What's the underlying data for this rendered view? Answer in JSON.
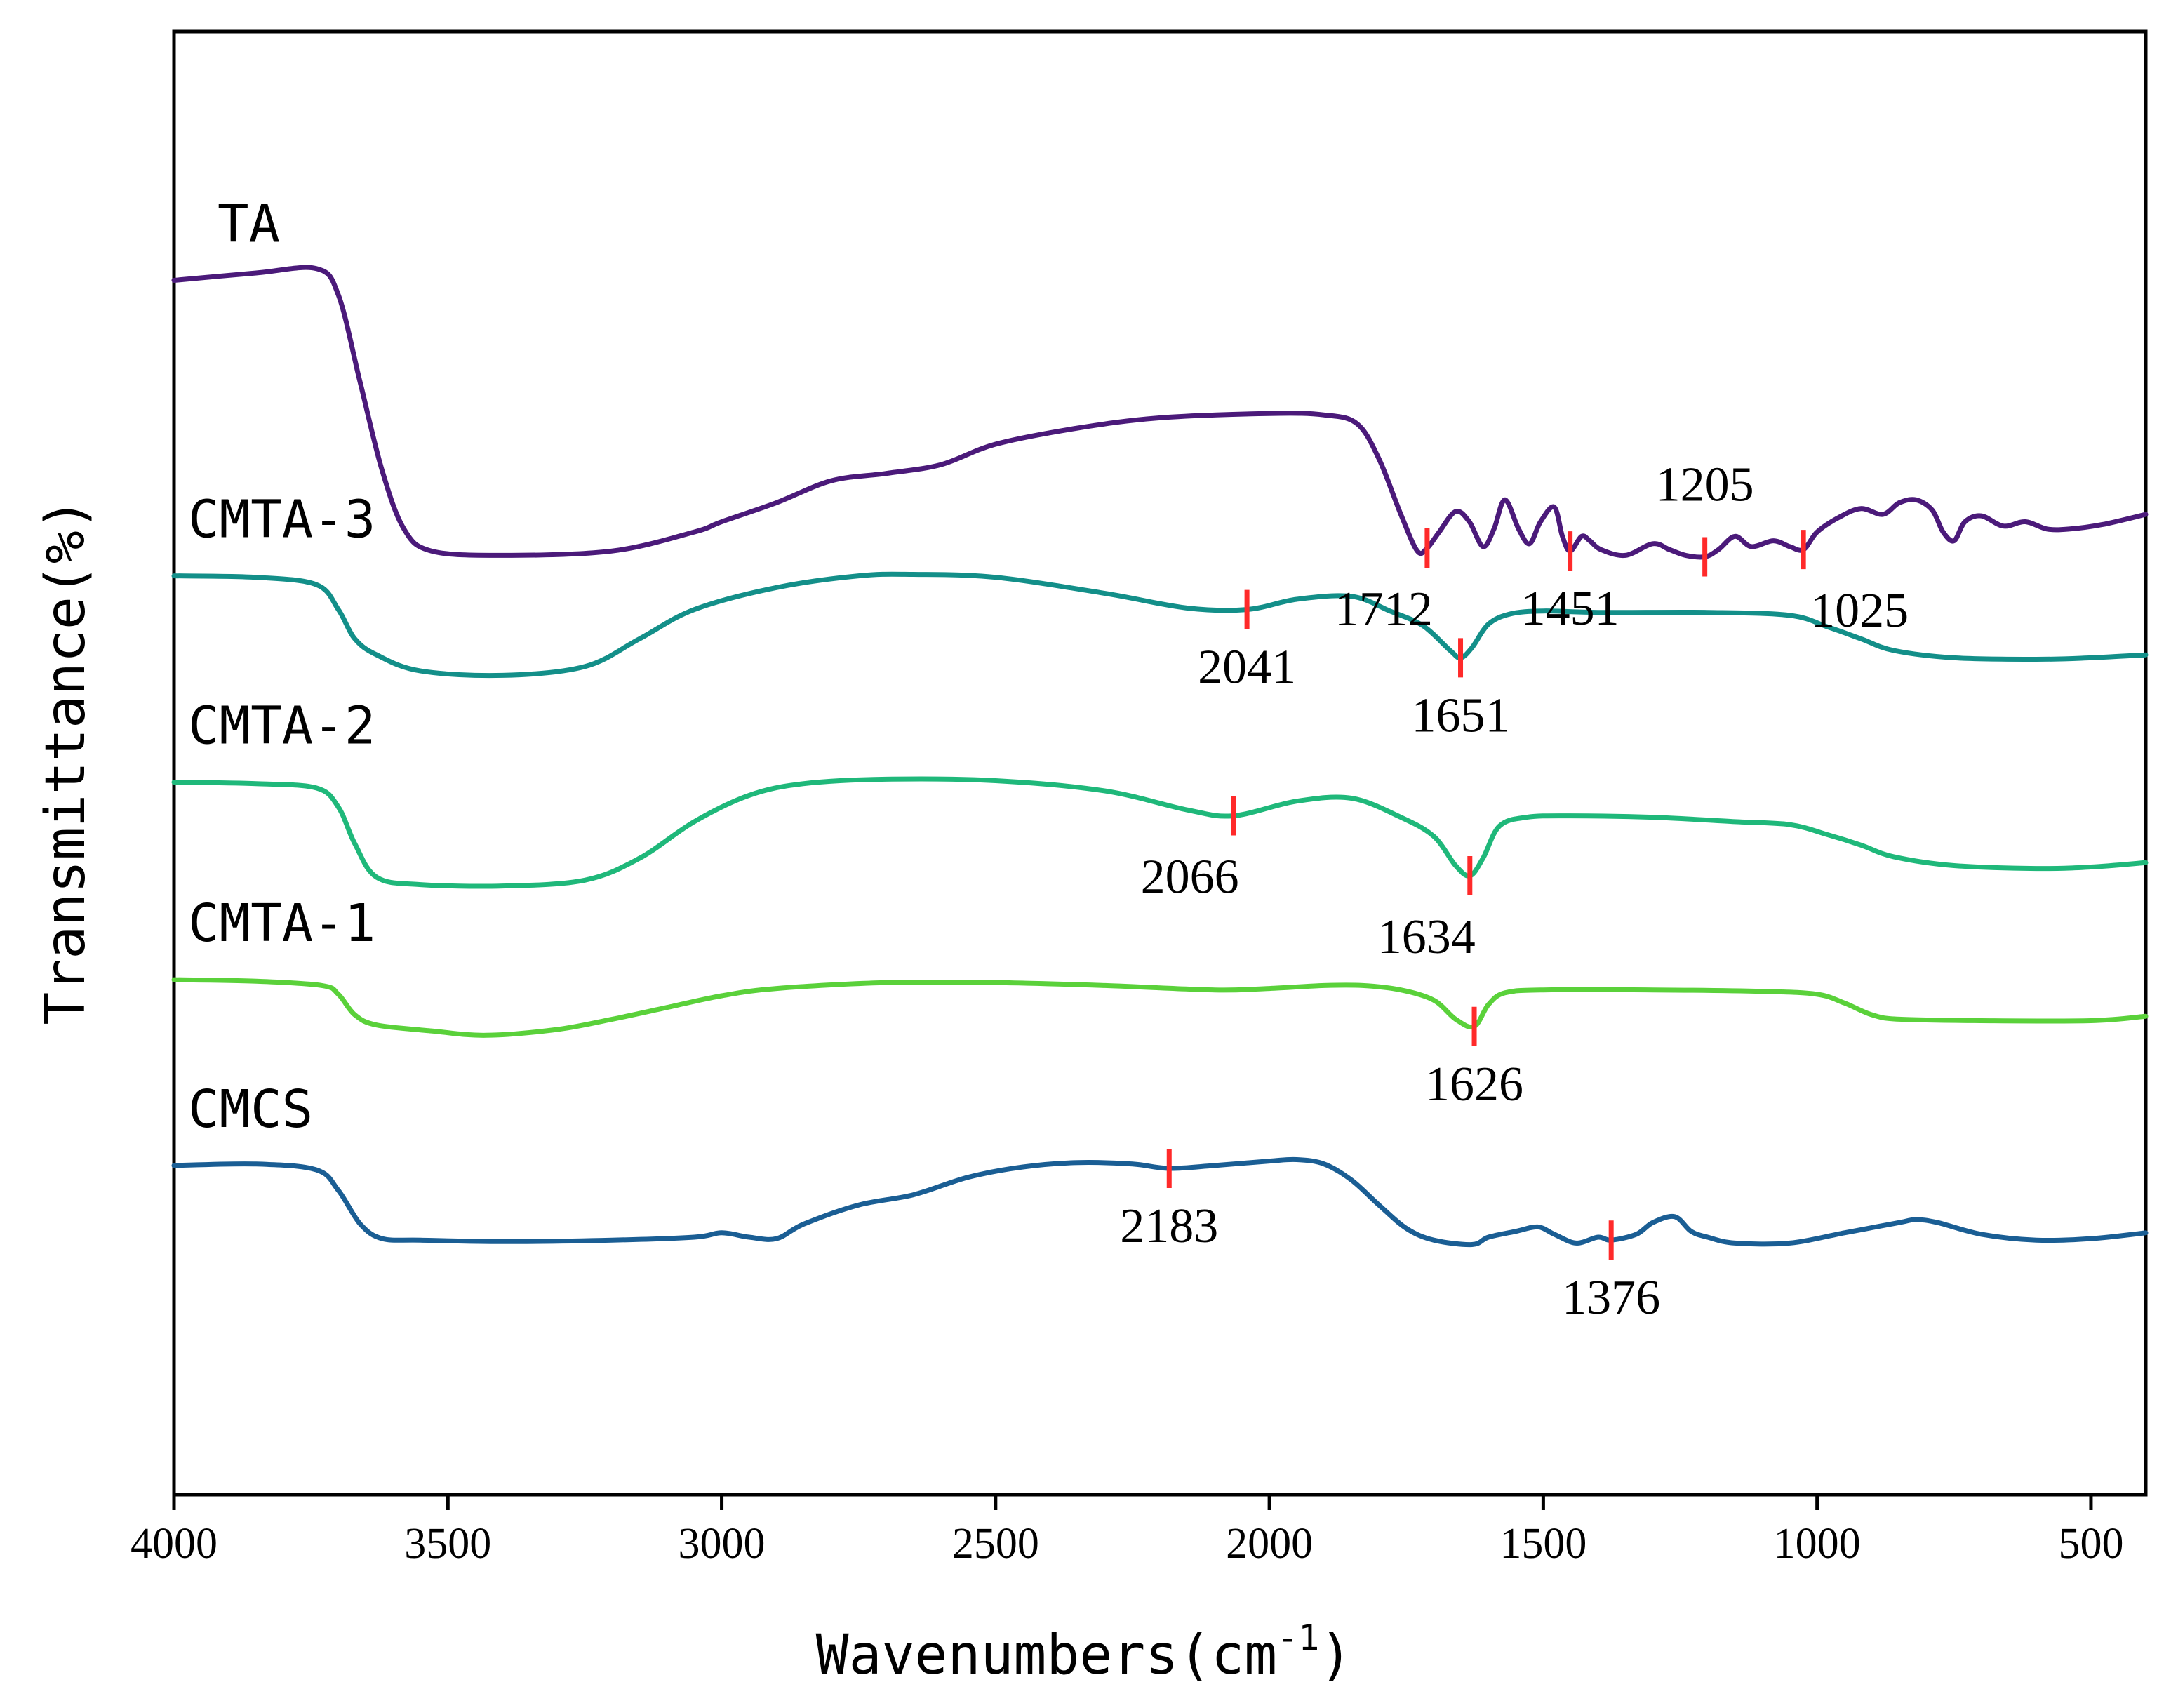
{
  "chart_data": {
    "type": "line",
    "title": "",
    "xlabel": "Wavenumbers(cm",
    "xlabel_sup": "-1",
    "xlabel_close": ")",
    "ylabel": "Transmittance(%)",
    "xlim": [
      4000,
      400
    ],
    "x_ticks": [
      "4000",
      "3500",
      "3000",
      "2500",
      "2000",
      "1500",
      "1000",
      "500"
    ],
    "x_tick_values": [
      4000,
      3500,
      3000,
      2500,
      2000,
      1500,
      1000,
      500
    ],
    "grid": false,
    "y_units": "relative transmittance (curves vertically offset, arbitrary units)",
    "ylim": [
      0,
      100
    ],
    "marker_color": "#ff2a2a",
    "series": [
      {
        "name": "TA",
        "color": "#4b1a7a",
        "points": [
          [
            4000,
            83
          ],
          [
            3850,
            83.5
          ],
          [
            3740,
            83.8
          ],
          [
            3700,
            82
          ],
          [
            3660,
            76
          ],
          [
            3620,
            70
          ],
          [
            3580,
            66
          ],
          [
            3530,
            64.5
          ],
          [
            3400,
            64.2
          ],
          [
            3200,
            64.5
          ],
          [
            3050,
            65.8
          ],
          [
            3000,
            66.5
          ],
          [
            2900,
            67.8
          ],
          [
            2800,
            69.3
          ],
          [
            2700,
            69.8
          ],
          [
            2600,
            70.4
          ],
          [
            2500,
            71.8
          ],
          [
            2350,
            72.9
          ],
          [
            2200,
            73.6
          ],
          [
            2000,
            73.9
          ],
          [
            1900,
            73.8
          ],
          [
            1840,
            73.2
          ],
          [
            1800,
            70.8
          ],
          [
            1760,
            67
          ],
          [
            1730,
            64.5
          ],
          [
            1712,
            64.7
          ],
          [
            1690,
            65.8
          ],
          [
            1660,
            67.2
          ],
          [
            1635,
            66.5
          ],
          [
            1610,
            64.8
          ],
          [
            1590,
            66
          ],
          [
            1570,
            68
          ],
          [
            1545,
            66
          ],
          [
            1525,
            65
          ],
          [
            1505,
            66.5
          ],
          [
            1480,
            67.5
          ],
          [
            1465,
            65.5
          ],
          [
            1451,
            64.5
          ],
          [
            1430,
            65.5
          ],
          [
            1415,
            65.2
          ],
          [
            1395,
            64.6
          ],
          [
            1350,
            64.2
          ],
          [
            1300,
            65
          ],
          [
            1270,
            64.6
          ],
          [
            1240,
            64.2
          ],
          [
            1205,
            64.1
          ],
          [
            1180,
            64.6
          ],
          [
            1150,
            65.5
          ],
          [
            1120,
            64.8
          ],
          [
            1080,
            65.2
          ],
          [
            1050,
            64.8
          ],
          [
            1025,
            64.6
          ],
          [
            1000,
            65.8
          ],
          [
            960,
            66.8
          ],
          [
            920,
            67.4
          ],
          [
            880,
            67
          ],
          [
            850,
            67.8
          ],
          [
            820,
            68
          ],
          [
            790,
            67.3
          ],
          [
            770,
            65.8
          ],
          [
            750,
            65.2
          ],
          [
            730,
            66.5
          ],
          [
            700,
            66.9
          ],
          [
            660,
            66.2
          ],
          [
            620,
            66.5
          ],
          [
            580,
            66
          ],
          [
            540,
            66
          ],
          [
            480,
            66.3
          ],
          [
            400,
            67
          ]
        ]
      },
      {
        "name": "CMTA-3",
        "color": "#138f89",
        "points": [
          [
            4000,
            62.8
          ],
          [
            3850,
            62.7
          ],
          [
            3740,
            62.2
          ],
          [
            3700,
            60.5
          ],
          [
            3670,
            58.5
          ],
          [
            3630,
            57.4
          ],
          [
            3550,
            56.3
          ],
          [
            3400,
            56.0
          ],
          [
            3250,
            56.6
          ],
          [
            3150,
            58.5
          ],
          [
            3050,
            60.5
          ],
          [
            2900,
            62
          ],
          [
            2750,
            62.8
          ],
          [
            2650,
            62.9
          ],
          [
            2500,
            62.7
          ],
          [
            2300,
            61.6
          ],
          [
            2150,
            60.6
          ],
          [
            2041,
            60.5
          ],
          [
            1950,
            61.2
          ],
          [
            1850,
            61.4
          ],
          [
            1780,
            60.4
          ],
          [
            1720,
            59.4
          ],
          [
            1670,
            57.7
          ],
          [
            1651,
            57.2
          ],
          [
            1630,
            57.9
          ],
          [
            1600,
            59.5
          ],
          [
            1560,
            60.2
          ],
          [
            1500,
            60.4
          ],
          [
            1400,
            60.3
          ],
          [
            1200,
            60.3
          ],
          [
            1050,
            60.1
          ],
          [
            980,
            59.3
          ],
          [
            920,
            58.5
          ],
          [
            860,
            57.7
          ],
          [
            750,
            57.2
          ],
          [
            600,
            57.1
          ],
          [
            500,
            57.2
          ],
          [
            400,
            57.4
          ]
        ]
      },
      {
        "name": "CMTA-2",
        "color": "#1fb87a",
        "points": [
          [
            4000,
            48.7
          ],
          [
            3850,
            48.6
          ],
          [
            3740,
            48.3
          ],
          [
            3700,
            47
          ],
          [
            3670,
            44.5
          ],
          [
            3630,
            42.2
          ],
          [
            3550,
            41.7
          ],
          [
            3400,
            41.6
          ],
          [
            3250,
            42
          ],
          [
            3150,
            43.5
          ],
          [
            3050,
            46
          ],
          [
            2950,
            47.8
          ],
          [
            2850,
            48.6
          ],
          [
            2700,
            48.9
          ],
          [
            2500,
            48.8
          ],
          [
            2300,
            48.1
          ],
          [
            2150,
            46.8
          ],
          [
            2066,
            46.4
          ],
          [
            1950,
            47.4
          ],
          [
            1850,
            47.6
          ],
          [
            1760,
            46.3
          ],
          [
            1700,
            45
          ],
          [
            1660,
            43
          ],
          [
            1634,
            42.3
          ],
          [
            1610,
            43.5
          ],
          [
            1580,
            45.7
          ],
          [
            1530,
            46.3
          ],
          [
            1450,
            46.4
          ],
          [
            1300,
            46.3
          ],
          [
            1150,
            46.0
          ],
          [
            1050,
            45.8
          ],
          [
            980,
            45.1
          ],
          [
            920,
            44.4
          ],
          [
            860,
            43.6
          ],
          [
            750,
            43.0
          ],
          [
            600,
            42.8
          ],
          [
            500,
            42.9
          ],
          [
            400,
            43.2
          ]
        ]
      },
      {
        "name": "CMTA-1",
        "color": "#5ad13a",
        "points": [
          [
            4000,
            35.2
          ],
          [
            3850,
            35.1
          ],
          [
            3730,
            34.8
          ],
          [
            3700,
            34.2
          ],
          [
            3670,
            32.8
          ],
          [
            3630,
            32.1
          ],
          [
            3530,
            31.7
          ],
          [
            3430,
            31.4
          ],
          [
            3300,
            31.8
          ],
          [
            3200,
            32.5
          ],
          [
            3100,
            33.3
          ],
          [
            3000,
            34.1
          ],
          [
            2900,
            34.6
          ],
          [
            2700,
            35
          ],
          [
            2500,
            35
          ],
          [
            2300,
            34.8
          ],
          [
            2100,
            34.5
          ],
          [
            2000,
            34.6
          ],
          [
            1900,
            34.8
          ],
          [
            1830,
            34.8
          ],
          [
            1760,
            34.5
          ],
          [
            1700,
            33.8
          ],
          [
            1660,
            32.5
          ],
          [
            1626,
            32.0
          ],
          [
            1600,
            33.5
          ],
          [
            1570,
            34.3
          ],
          [
            1500,
            34.5
          ],
          [
            1300,
            34.5
          ],
          [
            1100,
            34.4
          ],
          [
            1000,
            34.2
          ],
          [
            950,
            33.6
          ],
          [
            900,
            32.8
          ],
          [
            850,
            32.5
          ],
          [
            700,
            32.4
          ],
          [
            500,
            32.4
          ],
          [
            400,
            32.7
          ]
        ]
      },
      {
        "name": "CMCS",
        "color": "#1a5e94",
        "points": [
          [
            4000,
            22.5
          ],
          [
            3850,
            22.6
          ],
          [
            3740,
            22.2
          ],
          [
            3700,
            20.8
          ],
          [
            3660,
            18.5
          ],
          [
            3620,
            17.5
          ],
          [
            3550,
            17.4
          ],
          [
            3400,
            17.3
          ],
          [
            3200,
            17.4
          ],
          [
            3050,
            17.6
          ],
          [
            3000,
            17.9
          ],
          [
            2950,
            17.6
          ],
          [
            2900,
            17.5
          ],
          [
            2850,
            18.5
          ],
          [
            2750,
            19.8
          ],
          [
            2650,
            20.5
          ],
          [
            2550,
            21.7
          ],
          [
            2450,
            22.4
          ],
          [
            2350,
            22.7
          ],
          [
            2250,
            22.6
          ],
          [
            2183,
            22.3
          ],
          [
            2100,
            22.5
          ],
          [
            2000,
            22.8
          ],
          [
            1950,
            22.9
          ],
          [
            1900,
            22.6
          ],
          [
            1850,
            21.5
          ],
          [
            1800,
            19.8
          ],
          [
            1750,
            18.2
          ],
          [
            1700,
            17.4
          ],
          [
            1630,
            17.1
          ],
          [
            1600,
            17.6
          ],
          [
            1550,
            18
          ],
          [
            1510,
            18.3
          ],
          [
            1480,
            17.8
          ],
          [
            1440,
            17.2
          ],
          [
            1400,
            17.6
          ],
          [
            1376,
            17.4
          ],
          [
            1330,
            17.8
          ],
          [
            1300,
            18.6
          ],
          [
            1260,
            19
          ],
          [
            1230,
            18
          ],
          [
            1200,
            17.6
          ],
          [
            1150,
            17.2
          ],
          [
            1050,
            17.2
          ],
          [
            950,
            17.9
          ],
          [
            850,
            18.6
          ],
          [
            820,
            18.8
          ],
          [
            780,
            18.6
          ],
          [
            700,
            17.8
          ],
          [
            600,
            17.4
          ],
          [
            500,
            17.5
          ],
          [
            400,
            17.9
          ]
        ]
      }
    ],
    "annotations": [
      {
        "series": "TA",
        "x": 1712,
        "label": "1712",
        "label_pos": "below-left"
      },
      {
        "series": "TA",
        "x": 1451,
        "label": "1451",
        "label_pos": "below"
      },
      {
        "series": "TA",
        "x": 1205,
        "label": "1205",
        "label_pos": "above"
      },
      {
        "series": "TA",
        "x": 1025,
        "label": "1025",
        "label_pos": "below-right"
      },
      {
        "series": "CMTA-3",
        "x": 2041,
        "label": "2041",
        "label_pos": "below"
      },
      {
        "series": "CMTA-3",
        "x": 1651,
        "label": "1651",
        "label_pos": "below"
      },
      {
        "series": "CMTA-2",
        "x": 2066,
        "label": "2066",
        "label_pos": "below-left"
      },
      {
        "series": "CMTA-2",
        "x": 1634,
        "label": "1634",
        "label_pos": "below-left"
      },
      {
        "series": "CMTA-1",
        "x": 1626,
        "label": "1626",
        "label_pos": "below"
      },
      {
        "series": "CMCS",
        "x": 2183,
        "label": "2183",
        "label_pos": "below"
      },
      {
        "series": "CMCS",
        "x": 1376,
        "label": "1376",
        "label_pos": "below"
      }
    ]
  }
}
